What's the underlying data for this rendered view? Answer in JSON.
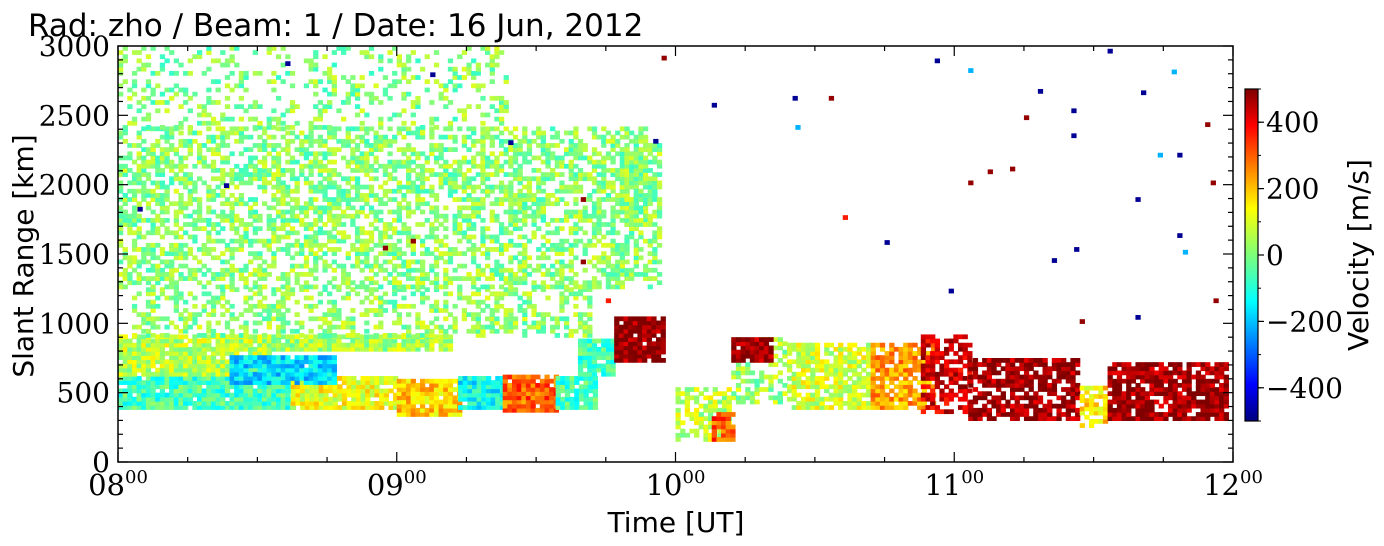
{
  "chart_data": {
    "type": "heatmap",
    "title": "Rad: zho / Beam: 1 / Date: 16 Jun, 2012",
    "xlabel": "Time [UT]",
    "ylabel": "Slant Range [km]",
    "colorbar_label": "Velocity [m/s]",
    "xlim": [
      8,
      12
    ],
    "ylim": [
      0,
      3000
    ],
    "clim": [
      -500,
      500
    ],
    "colormap": "jet",
    "x_ticks": [
      {
        "value": 8,
        "base": "08",
        "sup": "00"
      },
      {
        "value": 9,
        "base": "09",
        "sup": "00"
      },
      {
        "value": 10,
        "base": "10",
        "sup": "00"
      },
      {
        "value": 11,
        "base": "11",
        "sup": "00"
      },
      {
        "value": 12,
        "base": "12",
        "sup": "00"
      }
    ],
    "y_ticks": [
      {
        "value": 0,
        "label": "0"
      },
      {
        "value": 500,
        "label": "500"
      },
      {
        "value": 1000,
        "label": "1000"
      },
      {
        "value": 1500,
        "label": "1500"
      },
      {
        "value": 2000,
        "label": "2000"
      },
      {
        "value": 2500,
        "label": "2500"
      },
      {
        "value": 3000,
        "label": "3000"
      }
    ],
    "colorbar_ticks": [
      {
        "value": 400,
        "label": "400"
      },
      {
        "value": 200,
        "label": "200"
      },
      {
        "value": 0,
        "label": "0"
      },
      {
        "value": -200,
        "label": "−200"
      },
      {
        "value": -400,
        "label": "−400"
      }
    ],
    "regions": [
      {
        "t": [
          8.0,
          8.62
        ],
        "r": [
          380,
          620
        ],
        "v": -60
      },
      {
        "t": [
          8.62,
          9.0
        ],
        "r": [
          380,
          620
        ],
        "v": 110
      },
      {
        "t": [
          9.0,
          9.22
        ],
        "r": [
          330,
          580
        ],
        "v": 170
      },
      {
        "t": [
          9.22,
          9.38
        ],
        "r": [
          380,
          600
        ],
        "v": -120
      },
      {
        "t": [
          9.38,
          9.57
        ],
        "r": [
          360,
          620
        ],
        "v": 280
      },
      {
        "t": [
          9.57,
          9.72
        ],
        "r": [
          380,
          600
        ],
        "v": -60
      },
      {
        "t": [
          8.0,
          8.55
        ],
        "r": [
          620,
          900
        ],
        "v": 60
      },
      {
        "t": [
          8.4,
          8.78
        ],
        "r": [
          560,
          760
        ],
        "v": -160
      },
      {
        "t": [
          8.55,
          9.2
        ],
        "r": [
          800,
          900
        ],
        "v": 40
      },
      {
        "t": [
          9.65,
          9.78
        ],
        "r": [
          620,
          880
        ],
        "v": -60
      },
      {
        "t": [
          9.78,
          9.95
        ],
        "r": [
          720,
          1050
        ],
        "v": 480
      },
      {
        "t": [
          8.05,
          9.7
        ],
        "r": [
          900,
          1250
        ],
        "v": 20,
        "d": 0.42
      },
      {
        "t": [
          8.0,
          9.95
        ],
        "r": [
          1250,
          1700
        ],
        "v": 15,
        "d": 0.5
      },
      {
        "t": [
          8.0,
          9.9
        ],
        "r": [
          1700,
          2400
        ],
        "v": 12,
        "d": 0.55
      },
      {
        "t": [
          8.0,
          9.4
        ],
        "r": [
          2400,
          3000
        ],
        "v": 10,
        "d": 0.25
      },
      {
        "t": [
          9.8,
          9.95
        ],
        "r": [
          1700,
          2300
        ],
        "v": 15,
        "d": 0.75
      },
      {
        "t": [
          10.0,
          10.2
        ],
        "r": [
          150,
          520
        ],
        "v": 60,
        "d": 0.6
      },
      {
        "t": [
          10.13,
          10.2
        ],
        "r": [
          150,
          350
        ],
        "v": 300,
        "d": 0.9
      },
      {
        "t": [
          10.2,
          10.4
        ],
        "r": [
          420,
          900
        ],
        "v": 30,
        "d": 0.5
      },
      {
        "t": [
          10.2,
          10.35
        ],
        "r": [
          720,
          900
        ],
        "v": 480,
        "d": 0.9
      },
      {
        "t": [
          10.4,
          10.7
        ],
        "r": [
          380,
          850
        ],
        "v": 80,
        "d": 0.75
      },
      {
        "t": [
          10.7,
          10.92
        ],
        "r": [
          380,
          850
        ],
        "v": 220,
        "d": 0.8
      },
      {
        "t": [
          10.88,
          11.05
        ],
        "r": [
          350,
          900
        ],
        "v": 420,
        "d": 0.6
      },
      {
        "t": [
          11.05,
          11.45
        ],
        "r": [
          300,
          750
        ],
        "v": 470,
        "d": 0.75
      },
      {
        "t": [
          11.45,
          11.55
        ],
        "r": [
          250,
          550
        ],
        "v": 150,
        "d": 0.6
      },
      {
        "t": [
          11.55,
          11.98
        ],
        "r": [
          300,
          700
        ],
        "v": 470,
        "d": 0.8
      }
    ],
    "points": [
      {
        "t": 8.07,
        "r": 1810,
        "v": -480
      },
      {
        "t": 8.38,
        "r": 1980,
        "v": -480
      },
      {
        "t": 8.6,
        "r": 2860,
        "v": -480
      },
      {
        "t": 8.95,
        "r": 1530,
        "v": 480
      },
      {
        "t": 9.05,
        "r": 1580,
        "v": 480
      },
      {
        "t": 9.12,
        "r": 2780,
        "v": -480
      },
      {
        "t": 9.4,
        "r": 2290,
        "v": -480
      },
      {
        "t": 9.66,
        "r": 1880,
        "v": 480
      },
      {
        "t": 9.66,
        "r": 1430,
        "v": 480
      },
      {
        "t": 9.75,
        "r": 1150,
        "v": 350
      },
      {
        "t": 9.92,
        "r": 2300,
        "v": -480
      },
      {
        "t": 9.95,
        "r": 2900,
        "v": 480
      },
      {
        "t": 10.13,
        "r": 2560,
        "v": -480
      },
      {
        "t": 10.42,
        "r": 2610,
        "v": -480
      },
      {
        "t": 10.43,
        "r": 2400,
        "v": -200
      },
      {
        "t": 10.55,
        "r": 2610,
        "v": 480
      },
      {
        "t": 10.6,
        "r": 1750,
        "v": 350
      },
      {
        "t": 10.75,
        "r": 1570,
        "v": -480
      },
      {
        "t": 10.93,
        "r": 2880,
        "v": -480
      },
      {
        "t": 10.98,
        "r": 1220,
        "v": -480
      },
      {
        "t": 11.05,
        "r": 2810,
        "v": -200
      },
      {
        "t": 11.05,
        "r": 2000,
        "v": 480
      },
      {
        "t": 11.12,
        "r": 2080,
        "v": 480
      },
      {
        "t": 11.2,
        "r": 2100,
        "v": 480
      },
      {
        "t": 11.25,
        "r": 2470,
        "v": 480
      },
      {
        "t": 11.3,
        "r": 2660,
        "v": -480
      },
      {
        "t": 11.35,
        "r": 1440,
        "v": -480
      },
      {
        "t": 11.42,
        "r": 2520,
        "v": -480
      },
      {
        "t": 11.42,
        "r": 2340,
        "v": -480
      },
      {
        "t": 11.43,
        "r": 1520,
        "v": -480
      },
      {
        "t": 11.45,
        "r": 1000,
        "v": 480
      },
      {
        "t": 11.55,
        "r": 2950,
        "v": -480
      },
      {
        "t": 11.65,
        "r": 1030,
        "v": -480
      },
      {
        "t": 11.65,
        "r": 1880,
        "v": -480
      },
      {
        "t": 11.67,
        "r": 2650,
        "v": -480
      },
      {
        "t": 11.73,
        "r": 2200,
        "v": -200
      },
      {
        "t": 11.78,
        "r": 2800,
        "v": -200
      },
      {
        "t": 11.8,
        "r": 2200,
        "v": -480
      },
      {
        "t": 11.8,
        "r": 1620,
        "v": -480
      },
      {
        "t": 11.82,
        "r": 1500,
        "v": -200
      },
      {
        "t": 11.9,
        "r": 2420,
        "v": 480
      },
      {
        "t": 11.92,
        "r": 2000,
        "v": 480
      },
      {
        "t": 11.93,
        "r": 1150,
        "v": 480
      }
    ]
  }
}
